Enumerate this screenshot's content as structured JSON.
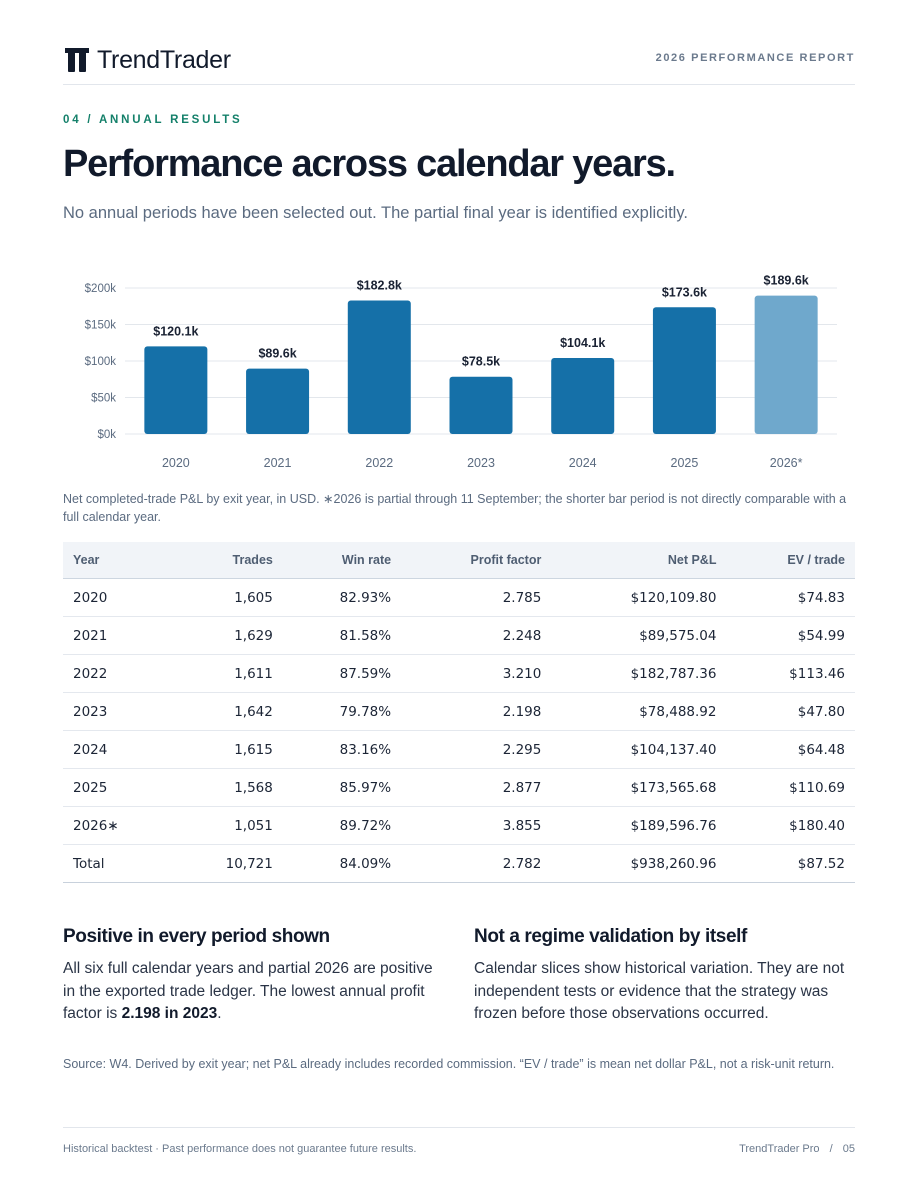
{
  "brand": {
    "name": "TrendTrader",
    "logo_icon": "trendtrader-t-icon"
  },
  "report_label": "2026 PERFORMANCE REPORT",
  "eyebrow": "04 / ANNUAL RESULTS",
  "title": "Performance across calendar years.",
  "subtitle": "No annual periods have been selected out. The partial final year is identified explicitly.",
  "chart_data": {
    "type": "bar",
    "categories": [
      "2020",
      "2021",
      "2022",
      "2023",
      "2024",
      "2025",
      "2026*"
    ],
    "values": [
      120.1,
      89.6,
      182.8,
      78.5,
      104.1,
      173.6,
      189.6
    ],
    "data_labels": [
      "$120.1k",
      "$89.6k",
      "$182.8k",
      "$78.5k",
      "$104.1k",
      "$173.6k",
      "$189.6k"
    ],
    "yticks": [
      0,
      50,
      100,
      150,
      200
    ],
    "ytick_labels": [
      "$0k",
      "$50k",
      "$100k",
      "$150k",
      "$200k"
    ],
    "ylim": [
      0,
      200
    ],
    "grid": true,
    "colors": {
      "full_year": "#1570a8",
      "partial_year": "#6fa8cc",
      "label": "#1a2233",
      "axis_text": "#5b6b80",
      "grid": "#e3e7ec"
    },
    "partial_index": 6
  },
  "caption": "Net completed-trade P&L by exit year, in USD. ∗2026 is partial through 11 September; the shorter bar period is not directly comparable with a full calendar year.",
  "table": {
    "headers": [
      "Year",
      "Trades",
      "Win rate",
      "Profit factor",
      "Net P&L",
      "EV / trade"
    ],
    "rows": [
      [
        "2020",
        "1,605",
        "82.93%",
        "2.785",
        "$120,109.80",
        "$74.83"
      ],
      [
        "2021",
        "1,629",
        "81.58%",
        "2.248",
        "$89,575.04",
        "$54.99"
      ],
      [
        "2022",
        "1,611",
        "87.59%",
        "3.210",
        "$182,787.36",
        "$113.46"
      ],
      [
        "2023",
        "1,642",
        "79.78%",
        "2.198",
        "$78,488.92",
        "$47.80"
      ],
      [
        "2024",
        "1,615",
        "83.16%",
        "2.295",
        "$104,137.40",
        "$64.48"
      ],
      [
        "2025",
        "1,568",
        "85.97%",
        "2.877",
        "$173,565.68",
        "$110.69"
      ],
      [
        "2026∗",
        "1,051",
        "89.72%",
        "3.855",
        "$189,596.76",
        "$180.40"
      ],
      [
        "Total",
        "10,721",
        "84.09%",
        "2.782",
        "$938,260.96",
        "$87.52"
      ]
    ]
  },
  "cards": {
    "left": {
      "title": "Positive in every period shown",
      "body_before": "All six full calendar years and partial 2026 are positive in the exported trade ledger. The lowest annual profit factor is ",
      "body_bold": "2.198 in 2023",
      "body_after": "."
    },
    "right": {
      "title": "Not a regime validation by itself",
      "body": "Calendar slices show historical variation. They are not independent tests or evidence that the strategy was frozen before those observations occurred."
    }
  },
  "source": "Source: W4. Derived by exit year; net P&L already includes recorded commission. “EV / trade” is mean net dollar P&L, not a risk-unit return.",
  "footer": {
    "disclaimer": "Historical backtest · Past performance does not guarantee future results.",
    "product": "TrendTrader Pro",
    "separator": "/",
    "page_number": "05"
  }
}
